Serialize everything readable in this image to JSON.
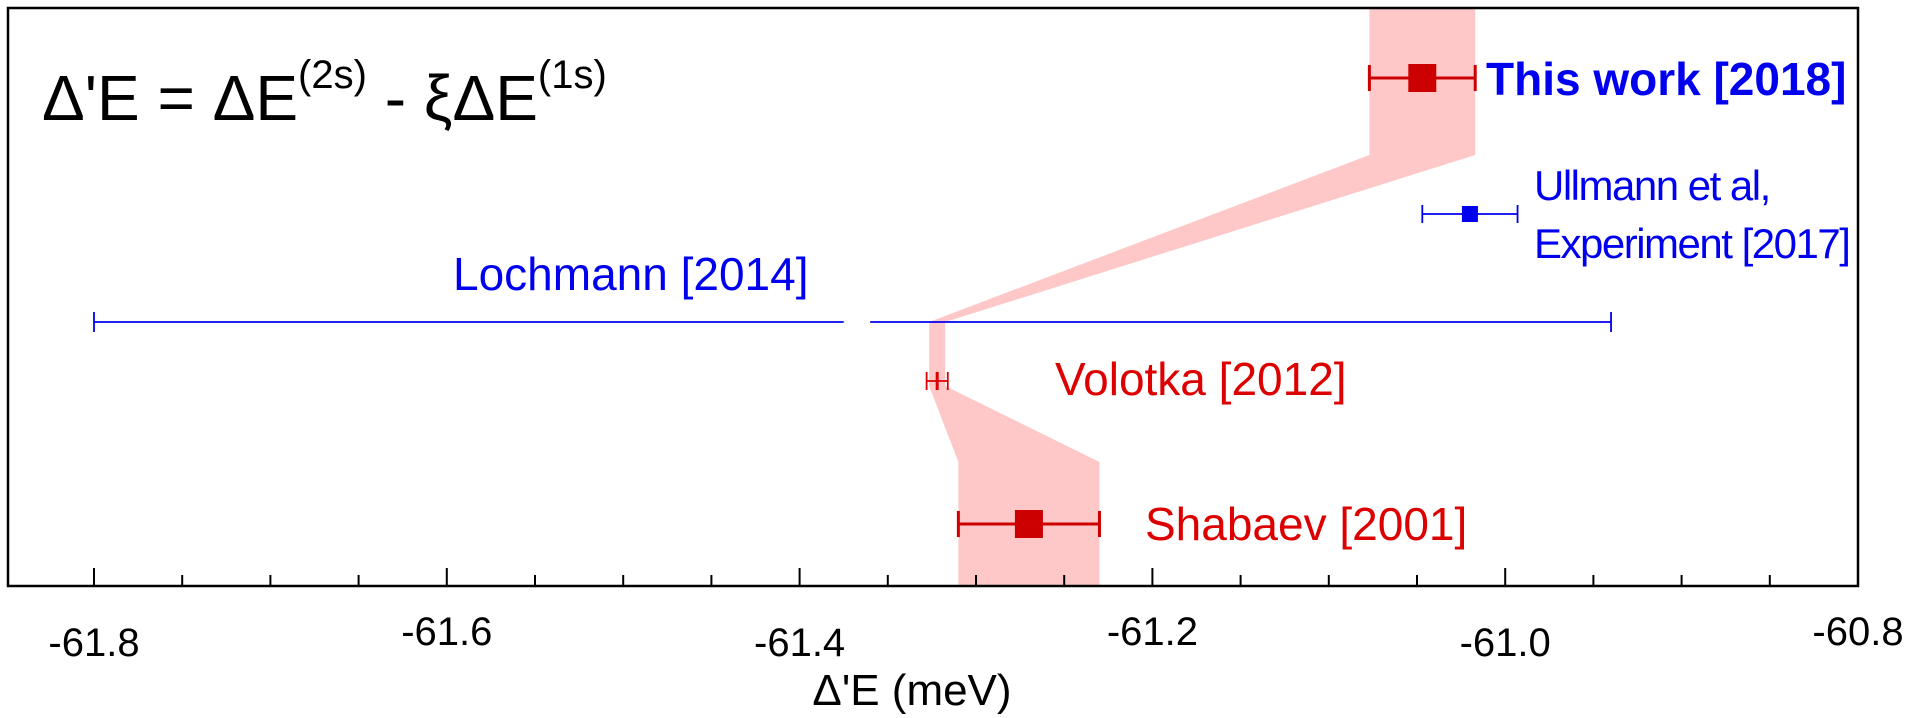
{
  "chart_data": {
    "type": "scatter",
    "title": "",
    "formula": {
      "lhs": "Δ'E = ΔE",
      "sup1": "(2s)",
      "mid": " - ξΔE",
      "sup2": "(1s)"
    },
    "xlabel": "Δ'E (meV)",
    "ylabel": "",
    "xlim": [
      -61.8,
      -60.8
    ],
    "x_ticks": [
      {
        "value": -61.8,
        "label": "-61.8"
      },
      {
        "value": -61.6,
        "label": "-61.6"
      },
      {
        "value": -61.4,
        "label": "-61.4"
      },
      {
        "value": -61.2,
        "label": "-61.2"
      },
      {
        "value": -61.0,
        "label": "-61.0"
      },
      {
        "value": -60.8,
        "label": "-60.8"
      }
    ],
    "grid": false,
    "colors": {
      "theory": "#dd0000",
      "experiment": "#0000ee",
      "band": "#ffc8c8"
    },
    "series": [
      {
        "name": "This work [2018]",
        "x": -61.047,
        "err_low": 0.03,
        "err_high": 0.03,
        "marker": "square-large",
        "color": "#cc0000"
      },
      {
        "name": "Ullmann et al,",
        "name2": "Experiment [2017]",
        "x": -61.02,
        "err_low": 0.027,
        "err_high": 0.027,
        "marker": "square-small",
        "color": "#0000ee"
      },
      {
        "name": "Lochmann [2014]",
        "x": -61.37,
        "err_low": 0.43,
        "err_high": 0.43,
        "marker": "none",
        "color": "#0000ee"
      },
      {
        "name": "Volotka [2012]",
        "x": -61.322,
        "err_low": 0.006,
        "err_high": 0.006,
        "marker": "tick",
        "color": "#dd0000"
      },
      {
        "name": "Shabaev [2001]",
        "x": -61.27,
        "err_low": 0.04,
        "err_high": 0.04,
        "marker": "square-large",
        "color": "#cc0000"
      }
    ]
  }
}
